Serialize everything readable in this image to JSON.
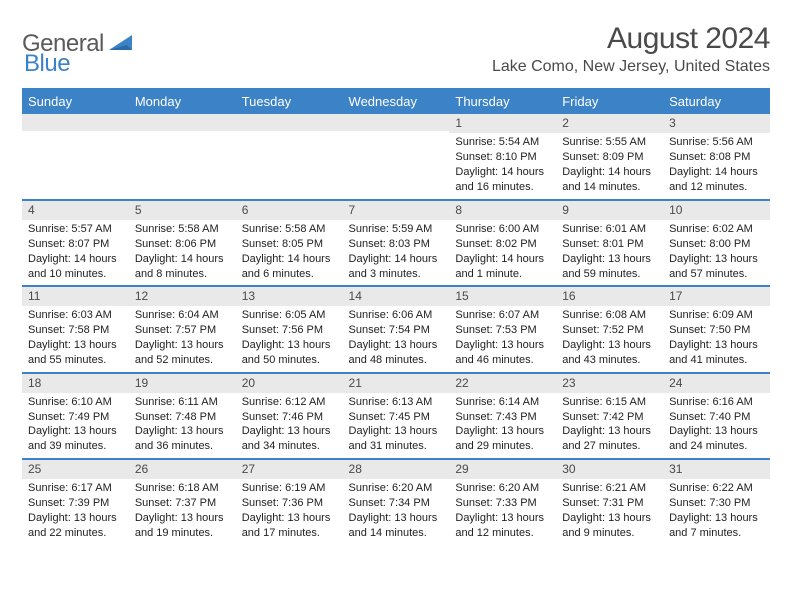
{
  "brand": {
    "a": "General",
    "b": "Blue"
  },
  "title": "August 2024",
  "location": "Lake Como, New Jersey, United States",
  "colors": {
    "accent": "#3b82c7",
    "header_text": "#4a4a4a",
    "daynum_bg": "#e9e9e9",
    "body_text": "#222222",
    "background": "#ffffff"
  },
  "calendar": {
    "days_of_week": [
      "Sunday",
      "Monday",
      "Tuesday",
      "Wednesday",
      "Thursday",
      "Friday",
      "Saturday"
    ],
    "weeks": [
      [
        null,
        null,
        null,
        null,
        {
          "n": "1",
          "sr": "Sunrise: 5:54 AM",
          "ss": "Sunset: 8:10 PM",
          "dl1": "Daylight: 14 hours",
          "dl2": "and 16 minutes."
        },
        {
          "n": "2",
          "sr": "Sunrise: 5:55 AM",
          "ss": "Sunset: 8:09 PM",
          "dl1": "Daylight: 14 hours",
          "dl2": "and 14 minutes."
        },
        {
          "n": "3",
          "sr": "Sunrise: 5:56 AM",
          "ss": "Sunset: 8:08 PM",
          "dl1": "Daylight: 14 hours",
          "dl2": "and 12 minutes."
        }
      ],
      [
        {
          "n": "4",
          "sr": "Sunrise: 5:57 AM",
          "ss": "Sunset: 8:07 PM",
          "dl1": "Daylight: 14 hours",
          "dl2": "and 10 minutes."
        },
        {
          "n": "5",
          "sr": "Sunrise: 5:58 AM",
          "ss": "Sunset: 8:06 PM",
          "dl1": "Daylight: 14 hours",
          "dl2": "and 8 minutes."
        },
        {
          "n": "6",
          "sr": "Sunrise: 5:58 AM",
          "ss": "Sunset: 8:05 PM",
          "dl1": "Daylight: 14 hours",
          "dl2": "and 6 minutes."
        },
        {
          "n": "7",
          "sr": "Sunrise: 5:59 AM",
          "ss": "Sunset: 8:03 PM",
          "dl1": "Daylight: 14 hours",
          "dl2": "and 3 minutes."
        },
        {
          "n": "8",
          "sr": "Sunrise: 6:00 AM",
          "ss": "Sunset: 8:02 PM",
          "dl1": "Daylight: 14 hours",
          "dl2": "and 1 minute."
        },
        {
          "n": "9",
          "sr": "Sunrise: 6:01 AM",
          "ss": "Sunset: 8:01 PM",
          "dl1": "Daylight: 13 hours",
          "dl2": "and 59 minutes."
        },
        {
          "n": "10",
          "sr": "Sunrise: 6:02 AM",
          "ss": "Sunset: 8:00 PM",
          "dl1": "Daylight: 13 hours",
          "dl2": "and 57 minutes."
        }
      ],
      [
        {
          "n": "11",
          "sr": "Sunrise: 6:03 AM",
          "ss": "Sunset: 7:58 PM",
          "dl1": "Daylight: 13 hours",
          "dl2": "and 55 minutes."
        },
        {
          "n": "12",
          "sr": "Sunrise: 6:04 AM",
          "ss": "Sunset: 7:57 PM",
          "dl1": "Daylight: 13 hours",
          "dl2": "and 52 minutes."
        },
        {
          "n": "13",
          "sr": "Sunrise: 6:05 AM",
          "ss": "Sunset: 7:56 PM",
          "dl1": "Daylight: 13 hours",
          "dl2": "and 50 minutes."
        },
        {
          "n": "14",
          "sr": "Sunrise: 6:06 AM",
          "ss": "Sunset: 7:54 PM",
          "dl1": "Daylight: 13 hours",
          "dl2": "and 48 minutes."
        },
        {
          "n": "15",
          "sr": "Sunrise: 6:07 AM",
          "ss": "Sunset: 7:53 PM",
          "dl1": "Daylight: 13 hours",
          "dl2": "and 46 minutes."
        },
        {
          "n": "16",
          "sr": "Sunrise: 6:08 AM",
          "ss": "Sunset: 7:52 PM",
          "dl1": "Daylight: 13 hours",
          "dl2": "and 43 minutes."
        },
        {
          "n": "17",
          "sr": "Sunrise: 6:09 AM",
          "ss": "Sunset: 7:50 PM",
          "dl1": "Daylight: 13 hours",
          "dl2": "and 41 minutes."
        }
      ],
      [
        {
          "n": "18",
          "sr": "Sunrise: 6:10 AM",
          "ss": "Sunset: 7:49 PM",
          "dl1": "Daylight: 13 hours",
          "dl2": "and 39 minutes."
        },
        {
          "n": "19",
          "sr": "Sunrise: 6:11 AM",
          "ss": "Sunset: 7:48 PM",
          "dl1": "Daylight: 13 hours",
          "dl2": "and 36 minutes."
        },
        {
          "n": "20",
          "sr": "Sunrise: 6:12 AM",
          "ss": "Sunset: 7:46 PM",
          "dl1": "Daylight: 13 hours",
          "dl2": "and 34 minutes."
        },
        {
          "n": "21",
          "sr": "Sunrise: 6:13 AM",
          "ss": "Sunset: 7:45 PM",
          "dl1": "Daylight: 13 hours",
          "dl2": "and 31 minutes."
        },
        {
          "n": "22",
          "sr": "Sunrise: 6:14 AM",
          "ss": "Sunset: 7:43 PM",
          "dl1": "Daylight: 13 hours",
          "dl2": "and 29 minutes."
        },
        {
          "n": "23",
          "sr": "Sunrise: 6:15 AM",
          "ss": "Sunset: 7:42 PM",
          "dl1": "Daylight: 13 hours",
          "dl2": "and 27 minutes."
        },
        {
          "n": "24",
          "sr": "Sunrise: 6:16 AM",
          "ss": "Sunset: 7:40 PM",
          "dl1": "Daylight: 13 hours",
          "dl2": "and 24 minutes."
        }
      ],
      [
        {
          "n": "25",
          "sr": "Sunrise: 6:17 AM",
          "ss": "Sunset: 7:39 PM",
          "dl1": "Daylight: 13 hours",
          "dl2": "and 22 minutes."
        },
        {
          "n": "26",
          "sr": "Sunrise: 6:18 AM",
          "ss": "Sunset: 7:37 PM",
          "dl1": "Daylight: 13 hours",
          "dl2": "and 19 minutes."
        },
        {
          "n": "27",
          "sr": "Sunrise: 6:19 AM",
          "ss": "Sunset: 7:36 PM",
          "dl1": "Daylight: 13 hours",
          "dl2": "and 17 minutes."
        },
        {
          "n": "28",
          "sr": "Sunrise: 6:20 AM",
          "ss": "Sunset: 7:34 PM",
          "dl1": "Daylight: 13 hours",
          "dl2": "and 14 minutes."
        },
        {
          "n": "29",
          "sr": "Sunrise: 6:20 AM",
          "ss": "Sunset: 7:33 PM",
          "dl1": "Daylight: 13 hours",
          "dl2": "and 12 minutes."
        },
        {
          "n": "30",
          "sr": "Sunrise: 6:21 AM",
          "ss": "Sunset: 7:31 PM",
          "dl1": "Daylight: 13 hours",
          "dl2": "and 9 minutes."
        },
        {
          "n": "31",
          "sr": "Sunrise: 6:22 AM",
          "ss": "Sunset: 7:30 PM",
          "dl1": "Daylight: 13 hours",
          "dl2": "and 7 minutes."
        }
      ]
    ]
  }
}
